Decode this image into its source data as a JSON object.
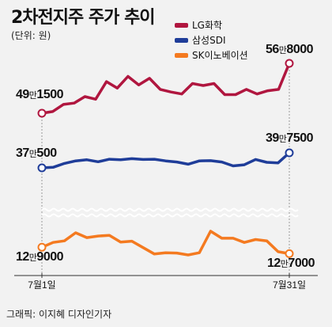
{
  "header": {
    "title": "2차전지주 주가 추이",
    "unit": "(단위: 원)"
  },
  "credit": "그래픽: 이지혜 디자인기자",
  "chart_data": {
    "type": "line",
    "title": "2차전지주 주가 추이",
    "unit_label": "(단위: 원)",
    "x_start_label": "7월1일",
    "x_end_label": "7월31일",
    "legend_position": "top-right",
    "grid": false,
    "broken_axis": true,
    "series": [
      {
        "name": "LG화학",
        "color": "#b0163f",
        "start_label_parts": [
          "49",
          "만",
          "1500"
        ],
        "end_label_parts": [
          "56",
          "만",
          "8000"
        ],
        "values": [
          491500,
          494000,
          505000,
          507000,
          517000,
          513000,
          540000,
          530000,
          548000,
          535000,
          545000,
          528000,
          524000,
          521000,
          537000,
          534000,
          537000,
          520000,
          520000,
          528000,
          521000,
          526000,
          528000,
          568000
        ]
      },
      {
        "name": "삼성SDI",
        "color": "#1f3d99",
        "start_label_parts": [
          "37",
          "만",
          "500"
        ],
        "end_label_parts": [
          "39",
          "만",
          "7500"
        ],
        "values": [
          370500,
          371500,
          378500,
          383000,
          385000,
          381500,
          386000,
          385000,
          387000,
          385500,
          386000,
          383000,
          381000,
          377000,
          383000,
          383500,
          381000,
          374000,
          376000,
          385500,
          380500,
          379500,
          397500
        ]
      },
      {
        "name": "SK이노베이션",
        "color": "#f47a20",
        "start_label_parts": [
          "12",
          "만",
          "9000"
        ],
        "end_label_parts": [
          "12",
          "만",
          "7000"
        ],
        "values": [
          129000,
          130500,
          131000,
          133500,
          132000,
          132500,
          132700,
          130600,
          130900,
          128900,
          126900,
          127300,
          127200,
          126600,
          127300,
          134000,
          131800,
          131800,
          130500,
          131400,
          131000,
          127600,
          127000
        ]
      }
    ]
  }
}
